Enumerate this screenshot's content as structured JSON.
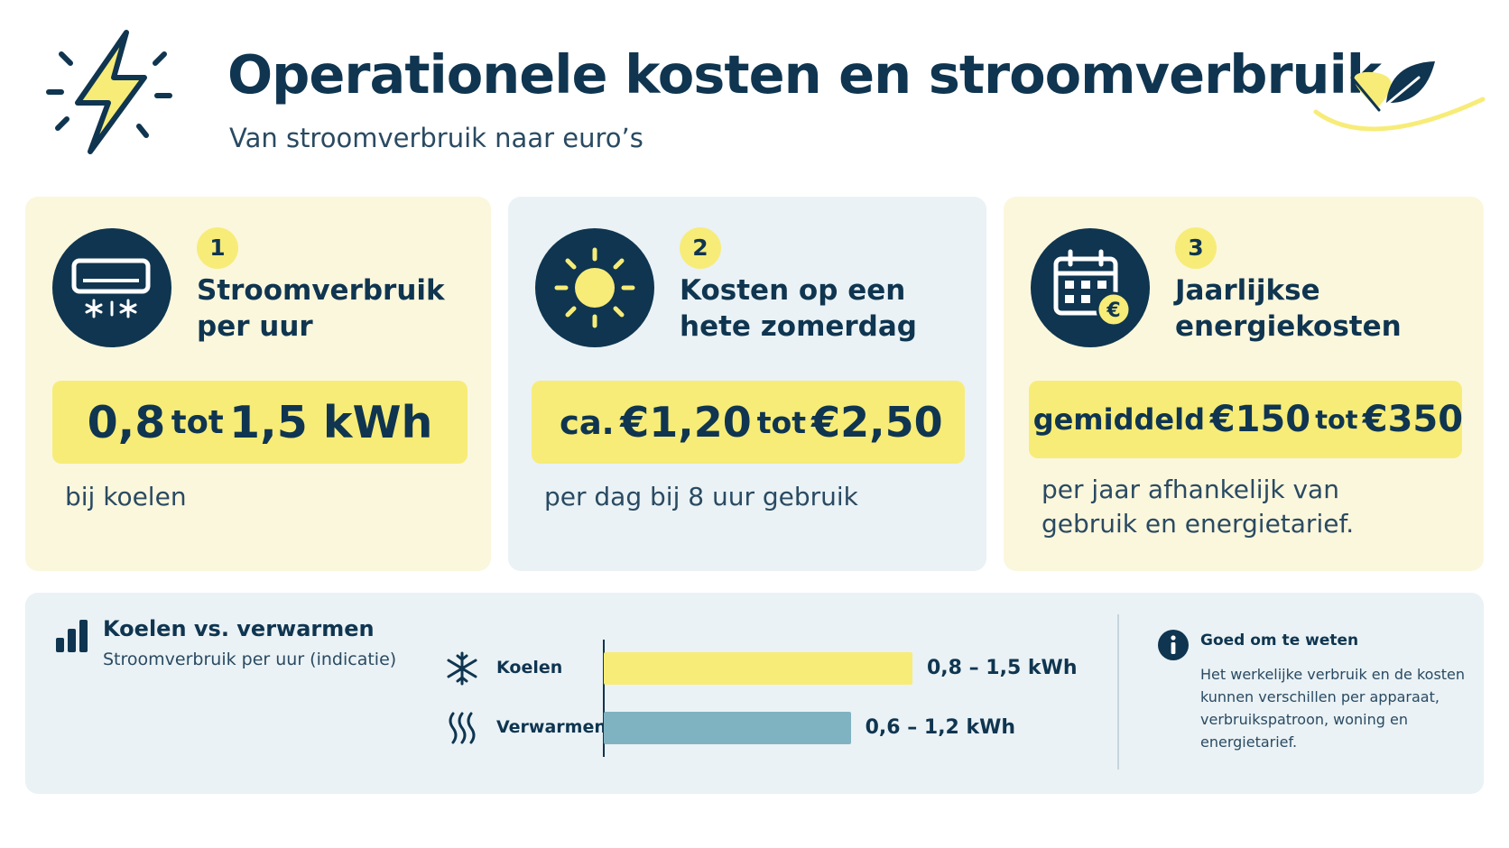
{
  "header": {
    "title": "Operationele kosten en stroomverbruik",
    "subtitle": "Van stroomverbruik naar euro’s"
  },
  "cards": [
    {
      "number": "1",
      "icon": "air-conditioner-icon",
      "heading": "Stroomverbruik per uur",
      "value_from": "0,8",
      "value_connector": "tot",
      "value_to": "1,5 kWh",
      "note": "bij koelen"
    },
    {
      "number": "2",
      "icon": "sun-icon",
      "heading": "Kosten op een hete zomerdag",
      "value_prefix": "ca.",
      "value_from": "€1,20",
      "value_connector": "tot",
      "value_to": "€2,50",
      "note": "per dag bij 8 uur gebruik"
    },
    {
      "number": "3",
      "icon": "calendar-euro-icon",
      "heading": "Jaarlijkse energiekosten",
      "value_prefix": "gemiddeld",
      "value_from": "€150",
      "value_connector": "tot",
      "value_to": "€350",
      "note": "per jaar afhankelijk van gebruik en energietarief."
    }
  ],
  "comparison": {
    "title": "Koelen vs. verwarmen",
    "subtitle": "Stroomverbruik per uur (indicatie)"
  },
  "chart_data": {
    "type": "bar",
    "orientation": "horizontal",
    "title": "Koelen vs. verwarmen",
    "subtitle": "Stroomverbruik per uur (indicatie)",
    "unit": "kWh",
    "categories": [
      "Koelen",
      "Verwarmen"
    ],
    "ranges": [
      [
        0.8,
        1.5
      ],
      [
        0.6,
        1.2
      ]
    ],
    "labels": [
      "0,8 – 1,5 kWh",
      "0,6 – 1,2 kWh"
    ],
    "colors": [
      "#f7ec78",
      "#80b3c1"
    ],
    "icons": [
      "snowflake-icon",
      "heat-waves-icon"
    ]
  },
  "info": {
    "title": "Goed om te weten",
    "text": "Het werkelijke verbruik en de kosten kunnen verschillen per apparaat, verbruikspatroon, woning en energietarief."
  },
  "colors": {
    "navy": "#0f3550",
    "yellow": "#f7ec78",
    "card_cream": "#fbf7dd",
    "card_blue": "#eaf2f5",
    "heating_bar": "#80b3c1"
  }
}
